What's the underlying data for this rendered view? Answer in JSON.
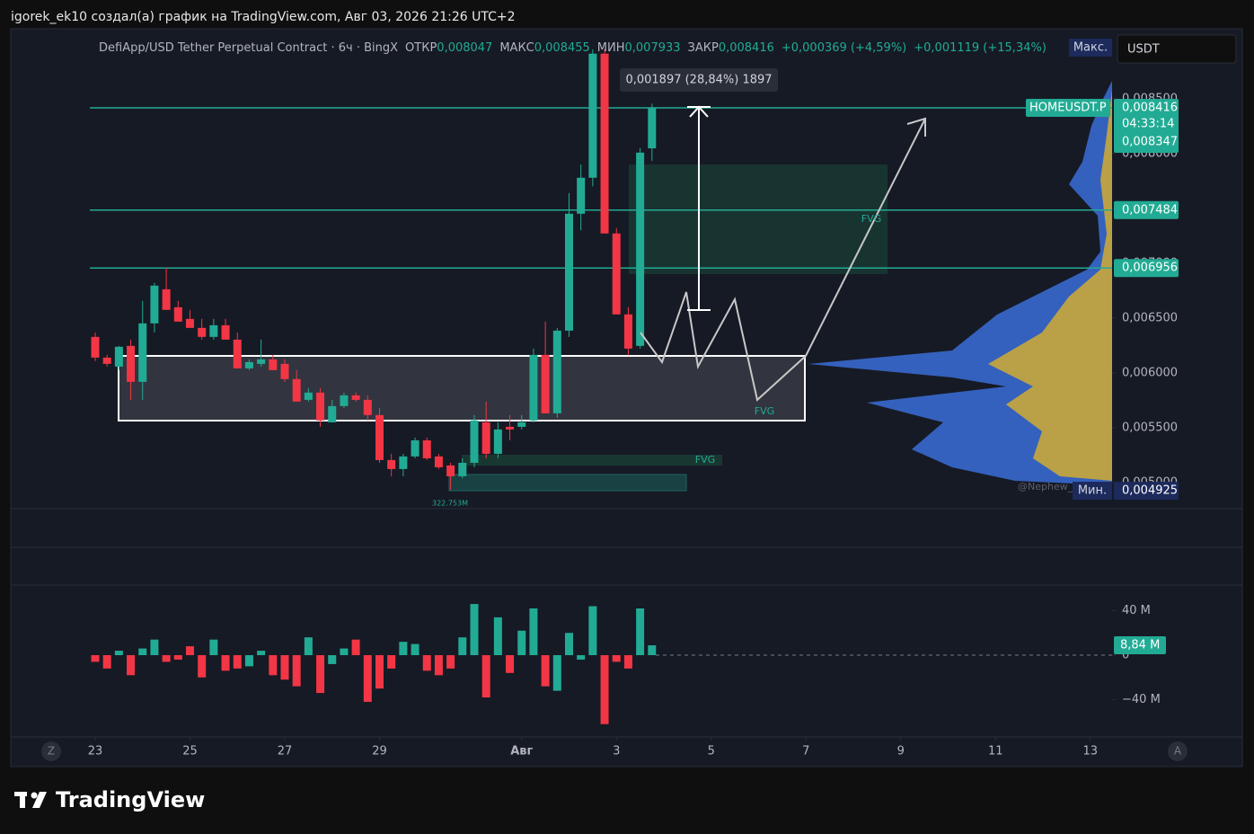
{
  "header": "igorek_ek10 создал(а) график на TradingView.com, Авг 03, 2026 21:26 UTC+2",
  "brand": "TradingView",
  "chart_data": {
    "type": "candlestick",
    "title": "DefiApp/USD Tether Perpetual Contract · 6ч · BingX",
    "ohlc": [
      {
        "key": "ОТКР",
        "text": "0,008047"
      },
      {
        "key": "МАКС",
        "text": "0,008455"
      },
      {
        "key": "МИН",
        "text": "0,007933"
      },
      {
        "key": "ЗАКР",
        "text": "0,008416"
      }
    ],
    "change": [
      "+0,000369 (+4,59%)",
      "+0,001119 (+15,34%)"
    ],
    "currency": "USDT",
    "max_tag": "Макс.",
    "watermark": "@Nephew_",
    "up_color": "#22ab94",
    "down_color": "#f23645",
    "xlim": [
      -1.744,
      21.46
    ],
    "xticks": [
      {
        "value": 0,
        "label": "23"
      },
      {
        "value": 2,
        "label": "25"
      },
      {
        "value": 4,
        "label": "27"
      },
      {
        "value": 6,
        "label": "29"
      },
      {
        "value": 9,
        "label": "Авг"
      },
      {
        "value": 11,
        "label": "3"
      },
      {
        "value": 13,
        "label": "5"
      },
      {
        "value": 15,
        "label": "7"
      },
      {
        "value": 17,
        "label": "9"
      },
      {
        "value": 19,
        "label": "11"
      },
      {
        "value": 21,
        "label": "13"
      }
    ],
    "axis_buttons": [
      "Z",
      "A"
    ],
    "ylim": [
      0.00477,
      0.00917
    ],
    "yticks": [
      {
        "value": 0.005,
        "label": "0,005000"
      },
      {
        "value": 0.0055,
        "label": "0,005500"
      },
      {
        "value": 0.006,
        "label": "0,006000"
      },
      {
        "value": 0.0065,
        "label": "0,006500"
      },
      {
        "value": 0.007,
        "label": "0,007000"
      },
      {
        "value": 0.0075,
        "label": "0,007500"
      },
      {
        "value": 0.008,
        "label": "0,008000"
      },
      {
        "value": 0.0085,
        "label": "0,008500"
      }
    ],
    "candles": {
      "x": [
        0,
        0.25,
        0.5,
        0.75,
        1,
        1.25,
        1.5,
        1.75,
        2,
        2.25,
        2.5,
        2.75,
        3,
        3.25,
        3.5,
        3.75,
        4,
        4.25,
        4.5,
        4.75,
        5,
        5.25,
        5.5,
        5.75,
        6,
        6.25,
        6.5,
        6.75,
        7,
        7.25,
        7.5,
        7.75,
        8,
        8.25,
        8.5,
        8.75,
        9,
        9.25,
        9.5,
        9.75,
        10,
        10.25,
        10.5,
        10.75,
        11,
        11.25,
        11.5,
        11.75
      ],
      "open": [
        0.006328,
        0.006139,
        0.006057,
        0.006246,
        0.005918,
        0.006451,
        0.006762,
        0.006598,
        0.006492,
        0.00641,
        0.006328,
        0.006434,
        0.006303,
        0.006041,
        0.006082,
        0.006123,
        0.006082,
        0.005943,
        0.005754,
        0.00582,
        0.005549,
        0.005697,
        0.005795,
        0.005754,
        0.005615,
        0.005205,
        0.005123,
        0.005238,
        0.005385,
        0.005238,
        0.005156,
        0.005057,
        0.00518,
        0.005549,
        0.005262,
        0.005508,
        0.005508,
        0.005566,
        0.006164,
        0.005631,
        0.006385,
        0.007451,
        0.007779,
        0.00891,
        0.007271,
        0.006533,
        0.006246,
        0.008047
      ],
      "high": [
        0.006369,
        0.006164,
        0.006246,
        0.006303,
        0.006656,
        0.00682,
        0.006959,
        0.006656,
        0.006574,
        0.006492,
        0.006492,
        0.006492,
        0.006369,
        0.006123,
        0.006303,
        0.006164,
        0.006123,
        0.006025,
        0.00586,
        0.00586,
        0.005754,
        0.00582,
        0.00582,
        0.005795,
        0.00568,
        0.005262,
        0.005262,
        0.00541,
        0.00541,
        0.005262,
        0.00518,
        0.005221,
        0.005615,
        0.005738,
        0.005549,
        0.005615,
        0.005615,
        0.006221,
        0.006467,
        0.00641,
        0.007639,
        0.0079,
        0.00895,
        0.00895,
        0.00732,
        0.0066,
        0.00805,
        0.008455
      ],
      "low": [
        0.006107,
        0.006057,
        0.006025,
        0.005754,
        0.005754,
        0.006369,
        0.006574,
        0.006467,
        0.00641,
        0.006303,
        0.006303,
        0.006303,
        0.006041,
        0.006025,
        0.006057,
        0.006025,
        0.005918,
        0.005738,
        0.005738,
        0.005508,
        0.005549,
        0.00568,
        0.005738,
        0.005566,
        0.00518,
        0.005057,
        0.005057,
        0.005221,
        0.005205,
        0.005123,
        0.004934,
        0.00504,
        0.005139,
        0.005221,
        0.005221,
        0.005385,
        0.005484,
        0.005549,
        0.005631,
        0.00559,
        0.006328,
        0.0073,
        0.0077,
        0.007271,
        0.006533,
        0.00616,
        0.006221,
        0.007933
      ],
      "close": [
        0.006139,
        0.006082,
        0.006238,
        0.005918,
        0.006451,
        0.006795,
        0.006574,
        0.006467,
        0.00641,
        0.006328,
        0.006434,
        0.006303,
        0.006041,
        0.006098,
        0.006123,
        0.006025,
        0.005943,
        0.005738,
        0.00582,
        0.005566,
        0.005697,
        0.005795,
        0.005754,
        0.005615,
        0.005205,
        0.005123,
        0.005238,
        0.005385,
        0.005221,
        0.005139,
        0.005057,
        0.00518,
        0.005566,
        0.005262,
        0.005484,
        0.005484,
        0.005549,
        0.006164,
        0.005631,
        0.006385,
        0.007451,
        0.007779,
        0.00891,
        0.007271,
        0.006533,
        0.006221,
        0.008008,
        0.008416
      ]
    },
    "hlines": [
      0.008416,
      0.007484,
      0.006956
    ],
    "hline_color": "#22ab94",
    "price_tags": [
      {
        "value": 0.008416,
        "label": "0,008416",
        "symbol": "HOMEUSDT.P",
        "countdown": "04:33:14",
        "sub_label": "0,008347",
        "color": "#22ab94"
      },
      {
        "value": 0.007484,
        "label": "0,007484",
        "color": "#22ab94"
      },
      {
        "value": 0.006956,
        "label": "0,006956",
        "color": "#22ab94"
      },
      {
        "value": 0.004925,
        "label": "0,004925",
        "tag": "Мин.",
        "color": "#1c2a5c"
      }
    ],
    "annotations": {
      "measure": "0,001897 (28,84%) 1897",
      "fvg": [
        "FVG",
        "FVG",
        "FVG"
      ],
      "volume_note": "322.753M"
    },
    "volume": {
      "ylim": [
        -73.5,
        62.2
      ],
      "yticks": [
        {
          "value": 40,
          "label": "40 M"
        },
        0,
        {
          "value": -40,
          "label": "−40 M"
        }
      ],
      "values": [
        -6,
        -12,
        4,
        -18,
        6,
        14,
        -6,
        -4,
        8,
        -20,
        14,
        -14,
        -12,
        -10,
        4,
        -18,
        -22,
        -28,
        16,
        -34,
        -8,
        6,
        14,
        -42,
        -30,
        -12,
        12,
        10,
        -14,
        -18,
        -12,
        16,
        46,
        -38,
        34,
        -16,
        22,
        42,
        -28,
        -32,
        20,
        -4,
        44,
        -62,
        -6,
        -12,
        42,
        8.84
      ],
      "last_tag": {
        "value": 8.84,
        "label": "8,84 M"
      }
    }
  }
}
